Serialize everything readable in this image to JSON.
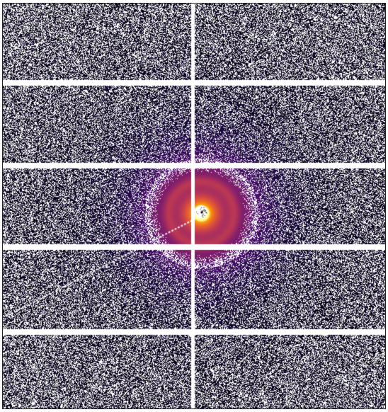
{
  "image": {
    "kind": "x-ray-scattering-detector-frame",
    "colormap": "inferno",
    "colors": {
      "background": "#ffffff",
      "noise_pixel": "#06051a",
      "gap": "#ffffff",
      "frame_border": "#222222",
      "ring_inner": "#fde725",
      "ring_mid": "#f89540",
      "ring_outer": "#b63679",
      "halo": "#3b0f70"
    },
    "features": {
      "module_gaps": "horizontal-and-vertical",
      "beamstop": "center",
      "beamstop_arm": "lower-left-diagonal",
      "noise_fill": true
    }
  }
}
